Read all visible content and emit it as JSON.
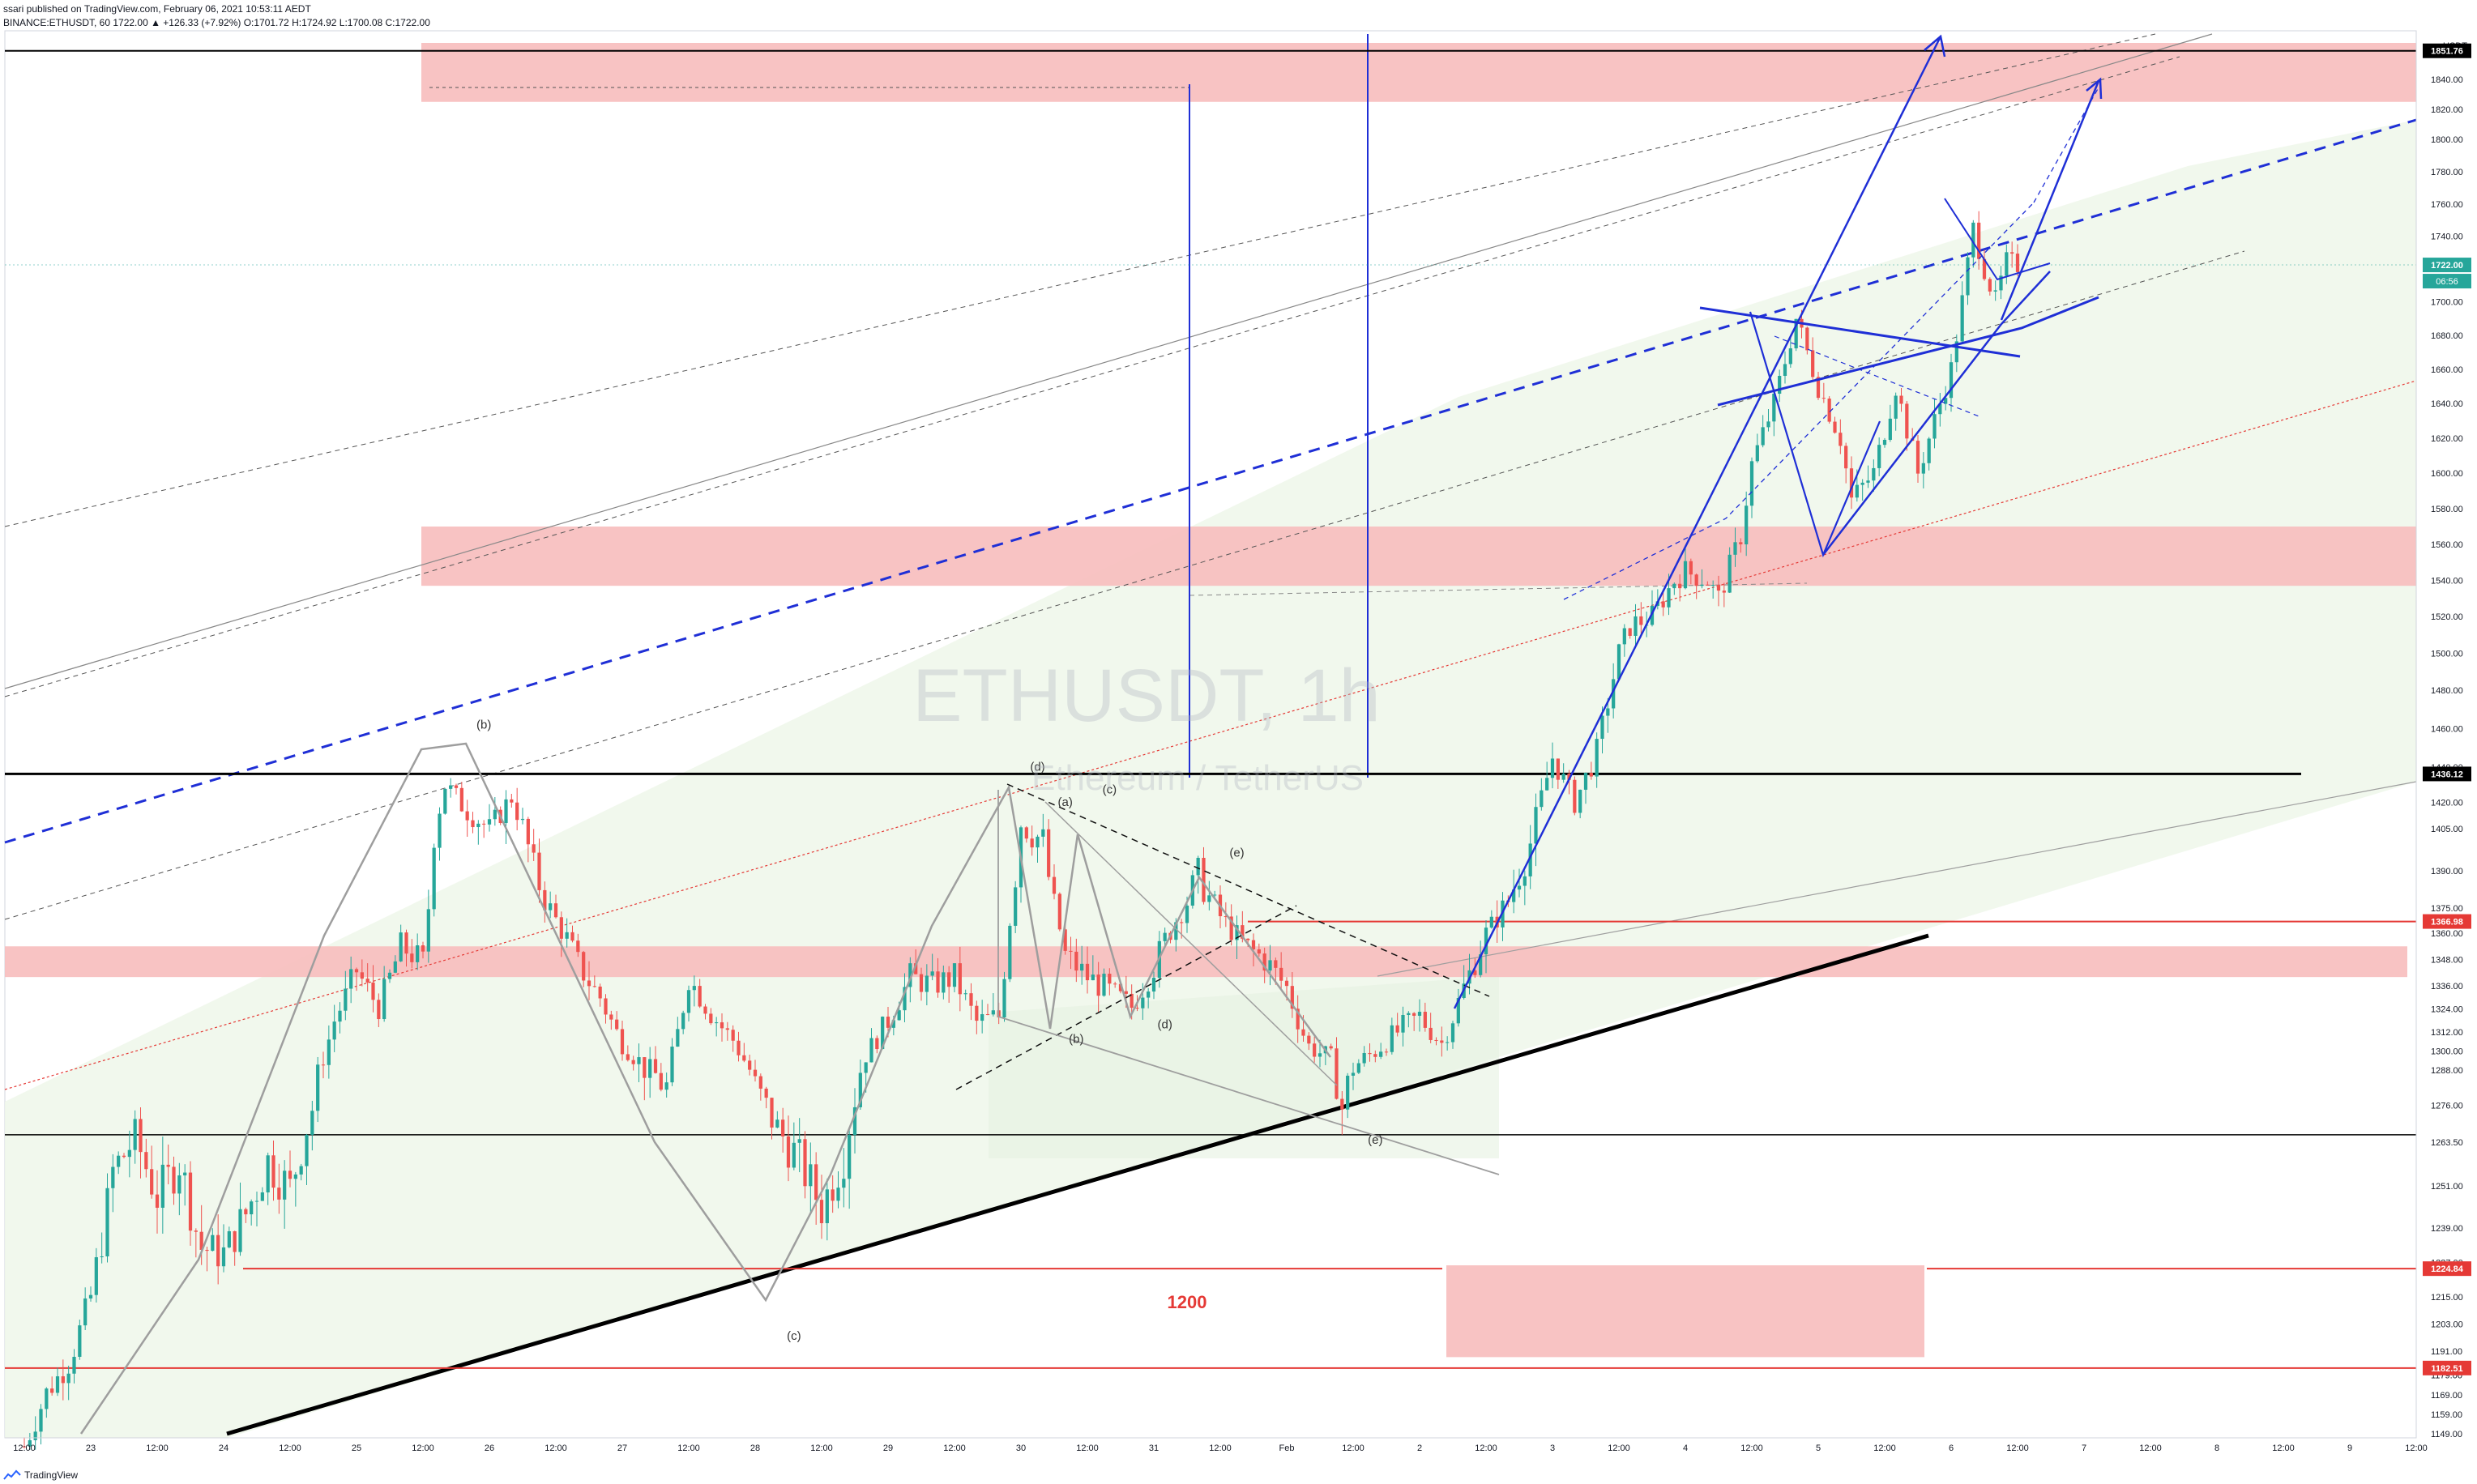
{
  "header": {
    "publish_line": "ssari published on TradingView.com, February 06, 2021 10:53:11 AEDT",
    "ohlc_line": "BINANCE:ETHUSDT, 60  1722.00  ▲ +126.33 (+7.92%) O:1701.72 H:1724.92 L:1700.08 C:1722.00"
  },
  "footer": {
    "brand": "TradingView"
  },
  "chart_data": {
    "type": "candlestick",
    "symbol": "ETHUSDT",
    "interval": "1h",
    "watermark_title": "ETHUSDT, 1h",
    "watermark_subtitle": "Ethereum / TetherUS",
    "y_unit": "USDT",
    "ylim": [
      1140,
      1860
    ],
    "x_range_hours": [
      0,
      362
    ],
    "last_price": "1722.00",
    "countdown": "06:56",
    "colors": {
      "up": "#26a69a",
      "down": "#ef5350",
      "zone": "#f7bdbd",
      "channel_fill": "#eef7ea",
      "blue": "#1f2fd6",
      "red_line": "#e53935",
      "gray": "#9e9e9e",
      "black": "#000000"
    },
    "y_ticks": [
      "1840.00",
      "1820.00",
      "1800.00",
      "1780.00",
      "1760.00",
      "1740.00",
      "1720.00",
      "1700.00",
      "1680.00",
      "1660.00",
      "1640.00",
      "1620.00",
      "1600.00",
      "1580.00",
      "1560.00",
      "1540.00",
      "1520.00",
      "1500.00",
      "1480.00",
      "1460.00",
      "1440.00",
      "1420.00",
      "1405.00",
      "1390.00",
      "1375.00",
      "1360.00",
      "1348.00",
      "1336.00",
      "1324.00",
      "1312.00",
      "1300.00",
      "1288.00",
      "1276.00",
      "1263.50",
      "1251.00",
      "1239.00",
      "1227.00",
      "1215.00",
      "1203.00",
      "1191.00",
      "1179.00",
      "1169.00",
      "1159.00",
      "1149.00"
    ],
    "price_labels": [
      {
        "text": "1851.76",
        "value": 1851.76,
        "color": "#000000"
      },
      {
        "text": "1722.00",
        "value": 1722,
        "color": "#26a69a"
      },
      {
        "text": "1436.12",
        "value": 1436.12,
        "color": "#000000"
      },
      {
        "text": "1366.98",
        "value": 1366.98,
        "color": "#e53935"
      },
      {
        "text": "1224.84",
        "value": 1224.84,
        "color": "#e53935"
      },
      {
        "text": "1182.51",
        "value": 1182.51,
        "color": "#e53935"
      }
    ],
    "x_ticks": [
      {
        "label": "12:00",
        "t": 0
      },
      {
        "label": "23",
        "t": 12
      },
      {
        "label": "12:00",
        "t": 24
      },
      {
        "label": "24",
        "t": 36
      },
      {
        "label": "12:00",
        "t": 48
      },
      {
        "label": "25",
        "t": 60
      },
      {
        "label": "12:00",
        "t": 72
      },
      {
        "label": "26",
        "t": 84
      },
      {
        "label": "12:00",
        "t": 96
      },
      {
        "label": "27",
        "t": 108
      },
      {
        "label": "12:00",
        "t": 120
      },
      {
        "label": "28",
        "t": 132
      },
      {
        "label": "12:00",
        "t": 144
      },
      {
        "label": "29",
        "t": 156
      },
      {
        "label": "12:00",
        "t": 168
      },
      {
        "label": "30",
        "t": 180
      },
      {
        "label": "12:00",
        "t": 192
      },
      {
        "label": "31",
        "t": 204
      },
      {
        "label": "12:00",
        "t": 216
      },
      {
        "label": "Feb",
        "t": 228
      },
      {
        "label": "12:00",
        "t": 240
      },
      {
        "label": "2",
        "t": 252
      },
      {
        "label": "12:00",
        "t": 264
      },
      {
        "label": "3",
        "t": 276
      },
      {
        "label": "12:00",
        "t": 288
      },
      {
        "label": "4",
        "t": 300
      },
      {
        "label": "12:00",
        "t": 312
      },
      {
        "label": "5",
        "t": 324
      },
      {
        "label": "12:00",
        "t": 336
      },
      {
        "label": "6",
        "t": 348
      },
      {
        "label": "12:00",
        "t": 360
      },
      {
        "label": "7",
        "t": 372
      },
      {
        "label": "12:00",
        "t": 384
      },
      {
        "label": "8",
        "t": 396
      },
      {
        "label": "12:00",
        "t": 408
      },
      {
        "label": "9",
        "t": 420
      },
      {
        "label": "12:00",
        "t": 432
      }
    ],
    "price_path": [
      [
        0,
        1142
      ],
      [
        4,
        1170
      ],
      [
        8,
        1185
      ],
      [
        12,
        1215
      ],
      [
        16,
        1255
      ],
      [
        20,
        1265
      ],
      [
        24,
        1248
      ],
      [
        28,
        1258
      ],
      [
        32,
        1232
      ],
      [
        36,
        1230
      ],
      [
        40,
        1243
      ],
      [
        44,
        1258
      ],
      [
        48,
        1250
      ],
      [
        52,
        1275
      ],
      [
        56,
        1318
      ],
      [
        60,
        1343
      ],
      [
        64,
        1325
      ],
      [
        68,
        1354
      ],
      [
        72,
        1347
      ],
      [
        74,
        1404
      ],
      [
        76,
        1430
      ],
      [
        80,
        1415
      ],
      [
        84,
        1405
      ],
      [
        88,
        1423
      ],
      [
        92,
        1390
      ],
      [
        96,
        1368
      ],
      [
        100,
        1346
      ],
      [
        104,
        1330
      ],
      [
        108,
        1305
      ],
      [
        112,
        1290
      ],
      [
        116,
        1282
      ],
      [
        120,
        1340
      ],
      [
        124,
        1322
      ],
      [
        128,
        1307
      ],
      [
        132,
        1282
      ],
      [
        136,
        1268
      ],
      [
        140,
        1258
      ],
      [
        144,
        1245
      ],
      [
        148,
        1260
      ],
      [
        152,
        1298
      ],
      [
        156,
        1318
      ],
      [
        160,
        1340
      ],
      [
        164,
        1336
      ],
      [
        168,
        1340
      ],
      [
        172,
        1317
      ],
      [
        176,
        1320
      ],
      [
        178,
        1368
      ],
      [
        180,
        1408
      ],
      [
        184,
        1400
      ],
      [
        188,
        1350
      ],
      [
        192,
        1340
      ],
      [
        196,
        1333
      ],
      [
        200,
        1325
      ],
      [
        204,
        1345
      ],
      [
        208,
        1368
      ],
      [
        212,
        1388
      ],
      [
        216,
        1370
      ],
      [
        220,
        1355
      ],
      [
        224,
        1348
      ],
      [
        228,
        1335
      ],
      [
        232,
        1303
      ],
      [
        236,
        1295
      ],
      [
        238,
        1275
      ],
      [
        240,
        1290
      ],
      [
        244,
        1300
      ],
      [
        248,
        1312
      ],
      [
        252,
        1320
      ],
      [
        256,
        1305
      ],
      [
        260,
        1335
      ],
      [
        264,
        1360
      ],
      [
        268,
        1378
      ],
      [
        272,
        1400
      ],
      [
        276,
        1445
      ],
      [
        280,
        1420
      ],
      [
        284,
        1448
      ],
      [
        288,
        1500
      ],
      [
        290,
        1515
      ],
      [
        294,
        1520
      ],
      [
        298,
        1540
      ],
      [
        300,
        1545
      ],
      [
        304,
        1540
      ],
      [
        306,
        1530
      ],
      [
        310,
        1565
      ],
      [
        312,
        1605
      ],
      [
        316,
        1640
      ],
      [
        320,
        1690
      ],
      [
        324,
        1650
      ],
      [
        328,
        1620
      ],
      [
        330,
        1585
      ],
      [
        334,
        1600
      ],
      [
        338,
        1650
      ],
      [
        342,
        1600
      ],
      [
        344,
        1620
      ],
      [
        348,
        1660
      ],
      [
        350,
        1700
      ],
      [
        352,
        1745
      ],
      [
        354,
        1720
      ],
      [
        356,
        1700
      ],
      [
        358,
        1724
      ],
      [
        360,
        1722
      ]
    ],
    "zones": [
      {
        "t1": 73,
        "t2": 441,
        "p1": 1825,
        "p2": 1855
      },
      {
        "t1": 73,
        "t2": 441,
        "p1": 1537,
        "p2": 1570
      },
      {
        "t1": 0,
        "t2": 437,
        "p1": 1340,
        "p2": 1354
      },
      {
        "t1": 263,
        "t2": 351,
        "p1": 1188,
        "p2": 1226
      }
    ],
    "horizontal_lines": [
      {
        "value": 1851.76,
        "t1": 0,
        "t2": 441,
        "color": "#000000",
        "width": 2
      },
      {
        "value": 1436.12,
        "t1": 0,
        "t2": 420,
        "color": "#000000",
        "width": 3
      },
      {
        "value": 1366.98,
        "t1": 226,
        "t2": 441,
        "color": "#e53935",
        "width": 2
      },
      {
        "value": 1224.84,
        "t1": 43,
        "t2": 263,
        "color": "#e53935",
        "width": 2
      },
      {
        "value": 1224.84,
        "t1": 351,
        "t2": 441,
        "color": "#e53935",
        "width": 2
      },
      {
        "value": 1182.51,
        "t1": 0,
        "t2": 441,
        "color": "#e53935",
        "width": 2
      },
      {
        "value": 1266,
        "t1": 0,
        "t2": 441,
        "color": "#000000",
        "width": 1.5
      }
    ],
    "wave_labels": [
      {
        "text": "(b)",
        "t": 83,
        "p": 1460
      },
      {
        "text": "(c)",
        "t": 139,
        "p": 1196
      },
      {
        "text": "(d)",
        "t": 183,
        "p": 1438
      },
      {
        "text": "(a)",
        "t": 188,
        "p": 1418
      },
      {
        "text": "(c)",
        "t": 196,
        "p": 1425
      },
      {
        "text": "(b)",
        "t": 190,
        "p": 1305
      },
      {
        "text": "(d)",
        "t": 206,
        "p": 1314
      },
      {
        "text": "(e)",
        "t": 219,
        "p": 1395
      },
      {
        "text": "(e)",
        "t": 244,
        "p": 1263
      },
      {
        "text": "1200",
        "t": 210,
        "p": 1210
      }
    ]
  }
}
